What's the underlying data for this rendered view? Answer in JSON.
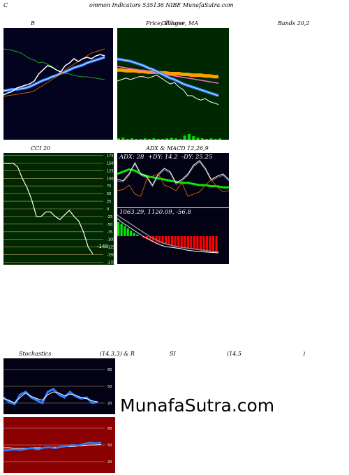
{
  "header": {
    "c": "C",
    "title": "ommon  Indicators 535136  NIBE MunafaSutra.com"
  },
  "labels": {
    "bb_left": "B",
    "price_title": "Price,  Volume,  MA",
    "price_overlap": "Ollinger",
    "bands": "Bands 20,2",
    "cci": "CCI 20",
    "adx_title": "ADX  & MACD 12,26,9",
    "stoch_left": "Stochastics",
    "stoch_params": "(14,3,3) & R",
    "si": "SI",
    "rsi_params": "(14,5",
    "rsi_close": ")"
  },
  "watermark": "MunafaSutra.com",
  "colors": {
    "bb_bg": "#03031f",
    "price_bg": "#002800",
    "cci_bg": "#002800",
    "adx_bg": "#020214",
    "stoch_bg": "#020214",
    "rsi_bg": "#8b0000"
  },
  "chart_data": [
    {
      "type": "line",
      "panel": "bollinger",
      "series": [
        {
          "values": [
            80,
            79,
            78,
            76,
            74,
            70,
            66,
            64,
            60,
            61,
            58,
            55,
            50,
            48,
            45,
            44,
            42,
            41,
            40,
            40,
            39,
            38,
            37,
            36
          ]
        },
        {
          "values": [
            20,
            21,
            22,
            22,
            23,
            24,
            26,
            29,
            32,
            35,
            37,
            40,
            42,
            45,
            47,
            50,
            53,
            55,
            57,
            60,
            62,
            64,
            66,
            68
          ]
        },
        {
          "values": [
            14,
            17,
            19,
            24,
            26,
            28,
            30,
            34,
            44,
            50,
            56,
            54,
            50,
            47,
            56,
            60,
            66,
            62,
            66,
            68,
            66,
            70,
            72,
            70
          ]
        },
        {
          "values": [
            12,
            13,
            14,
            15,
            16,
            17,
            18,
            20,
            24,
            28,
            32,
            36,
            40,
            44,
            50,
            54,
            58,
            62,
            66,
            70,
            74,
            76,
            78,
            80
          ]
        }
      ]
    },
    {
      "type": "line",
      "panel": "price",
      "series": [
        {
          "values": [
            70,
            69,
            68,
            67,
            65,
            63,
            61,
            58,
            56,
            53,
            50,
            47,
            44,
            42,
            39,
            36,
            34,
            32,
            30,
            28,
            26,
            24,
            22,
            20
          ]
        },
        {
          "values": [
            60,
            59,
            58,
            57,
            56,
            55,
            54,
            53,
            52,
            51,
            50,
            49,
            48,
            47,
            46,
            45,
            44,
            43,
            42,
            41,
            40,
            39,
            38,
            37
          ]
        },
        {
          "values": [
            55,
            55,
            54,
            54,
            54,
            53,
            53,
            52,
            52,
            52,
            51,
            51,
            50,
            50,
            50,
            49,
            49,
            48,
            48,
            48,
            47,
            47,
            46,
            46
          ]
        },
        {
          "values": [
            40,
            42,
            44,
            42,
            44,
            46,
            46,
            44,
            46,
            48,
            44,
            40,
            36,
            38,
            32,
            28,
            20,
            20,
            16,
            14,
            16,
            12,
            10,
            8
          ]
        },
        {
          "values": [
            2,
            3,
            1,
            2,
            1,
            1,
            2,
            1,
            2,
            1,
            1,
            2,
            3,
            2,
            1,
            6,
            8,
            5,
            3,
            2,
            1,
            2,
            1,
            2
          ]
        }
      ]
    },
    {
      "type": "line",
      "panel": "cci",
      "ylim": [
        -175,
        175
      ],
      "yticks": [
        175,
        150,
        125,
        100,
        75,
        50,
        25,
        0,
        -25,
        -50,
        -75,
        -100,
        -125,
        -150,
        -175
      ],
      "series": [
        {
          "values": [
            150,
            148,
            150,
            138,
            100,
            70,
            30,
            -25,
            -25,
            -10,
            -10,
            -25,
            -35,
            -20,
            -5,
            -25,
            -40,
            -75,
            -125,
            -148
          ]
        }
      ],
      "annotation": "-148"
    },
    {
      "type": "line",
      "panel": "adx",
      "text": {
        "adx": "ADX: 28",
        "pdi": "+DY: 14.2",
        "mdi": "-DY: 25.25"
      },
      "series": [
        {
          "values": [
            30,
            32,
            34,
            33,
            30,
            28,
            27,
            26,
            25,
            24,
            23,
            22,
            22,
            21,
            20,
            20,
            19,
            19,
            18,
            18
          ]
        },
        {
          "values": [
            25,
            24,
            30,
            40,
            30,
            28,
            20,
            30,
            35,
            32,
            22,
            25,
            30,
            38,
            42,
            35,
            25,
            28,
            30,
            25
          ]
        },
        {
          "values": [
            15,
            16,
            20,
            12,
            10,
            25,
            28,
            30,
            20,
            18,
            15,
            22,
            10,
            12,
            14,
            20,
            25,
            18,
            14,
            15
          ]
        }
      ]
    },
    {
      "type": "bar",
      "panel": "macd",
      "text": {
        "values": "1063.29,  1120.09,  -56.8"
      },
      "series": [
        {
          "values": [
            50,
            38,
            28,
            18,
            8,
            -2,
            -10,
            -18,
            -25,
            -30,
            -32,
            -34,
            -36,
            -40,
            -42,
            -44,
            -45,
            -46,
            -47,
            -48
          ]
        },
        {
          "values": [
            60,
            50,
            40,
            30,
            20,
            10,
            0,
            -8,
            -16,
            -22,
            -26,
            -30,
            -32,
            -34,
            -36,
            -38,
            -40,
            -42,
            -44,
            -45
          ]
        }
      ],
      "bars": [
        25,
        22,
        18,
        14,
        10,
        6,
        3,
        0,
        -3,
        -5,
        -7,
        -9,
        -11,
        -13,
        -14,
        -15,
        -16,
        -17,
        -18,
        -19,
        -20,
        -21,
        -22,
        -23,
        -24,
        -25,
        -26,
        -27,
        -28,
        -28,
        -29,
        -30
      ]
    },
    {
      "type": "line",
      "panel": "stochastics",
      "ylim": [
        0,
        100
      ],
      "yticks": [
        80,
        50,
        20
      ],
      "series": [
        {
          "values": [
            30,
            22,
            18,
            35,
            40,
            30,
            25,
            20,
            40,
            45,
            35,
            30,
            40,
            32,
            28,
            30,
            20,
            22
          ]
        },
        {
          "values": [
            28,
            25,
            20,
            30,
            38,
            32,
            28,
            25,
            35,
            40,
            38,
            33,
            36,
            34,
            30,
            28,
            24,
            22
          ]
        }
      ]
    },
    {
      "type": "line",
      "panel": "rsi",
      "ylim": [
        0,
        100
      ],
      "yticks": [
        80,
        50,
        20
      ],
      "series": [
        {
          "values": [
            40,
            41,
            42,
            41,
            43,
            44,
            42,
            45,
            46,
            44,
            47,
            48,
            50,
            49,
            52,
            54,
            53,
            54
          ]
        },
        {
          "values": [
            45,
            45,
            44,
            44,
            44,
            45,
            45,
            45,
            46,
            46,
            46,
            47,
            47,
            48,
            49,
            50,
            50,
            51
          ]
        }
      ]
    }
  ]
}
